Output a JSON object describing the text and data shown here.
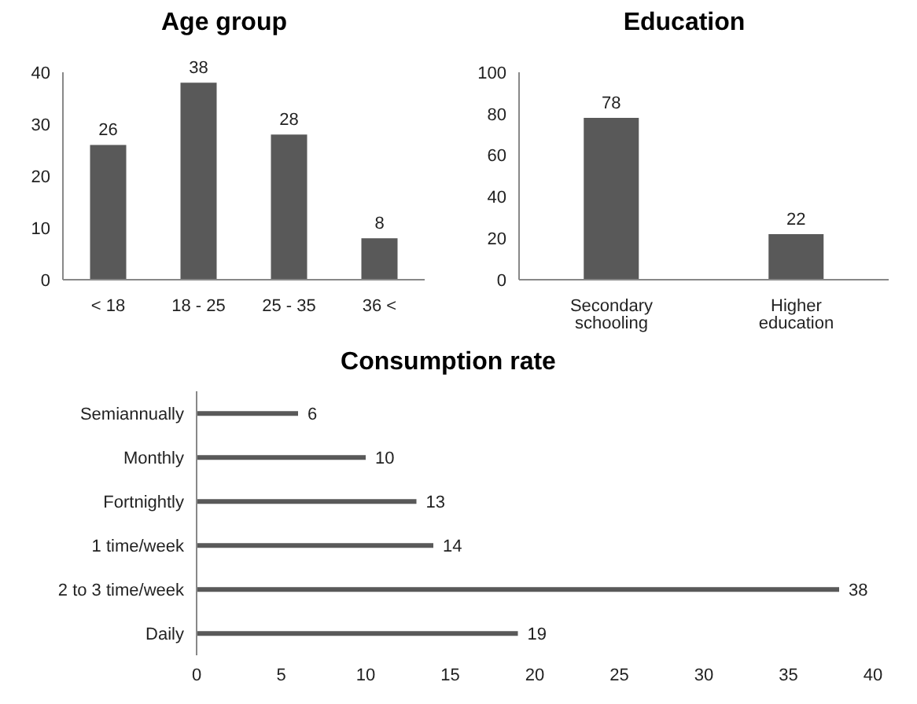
{
  "chart_data": [
    {
      "type": "bar",
      "title": "Age group",
      "categories": [
        "< 18",
        "18 - 25",
        "25 - 35",
        "36 <"
      ],
      "values": [
        26,
        38,
        28,
        8
      ],
      "color": "#595959",
      "ylim": [
        0,
        40
      ],
      "yticks": [
        0,
        10,
        20,
        30,
        40
      ],
      "data_labels": true,
      "grid": false,
      "legend": false
    },
    {
      "type": "bar",
      "title": "Education",
      "categories": [
        "Secondary schooling",
        "Higher education"
      ],
      "values": [
        78,
        22
      ],
      "color": "#595959",
      "ylim": [
        0,
        100
      ],
      "yticks": [
        0,
        20,
        40,
        60,
        80,
        100
      ],
      "data_labels": true,
      "grid": false,
      "legend": false
    },
    {
      "type": "bar",
      "title": "Consumption rate",
      "orientation": "horizontal",
      "categories": [
        "Semiannually",
        "Monthly",
        "Fortnightly",
        "1 time/week",
        "2 to 3 time/week",
        "Daily"
      ],
      "values": [
        6,
        10,
        13,
        14,
        38,
        19
      ],
      "color": "#595959",
      "xlim": [
        0,
        40
      ],
      "xticks": [
        0,
        5,
        10,
        15,
        20,
        25,
        30,
        35,
        40
      ],
      "data_labels": true,
      "grid": false,
      "legend": false
    }
  ]
}
